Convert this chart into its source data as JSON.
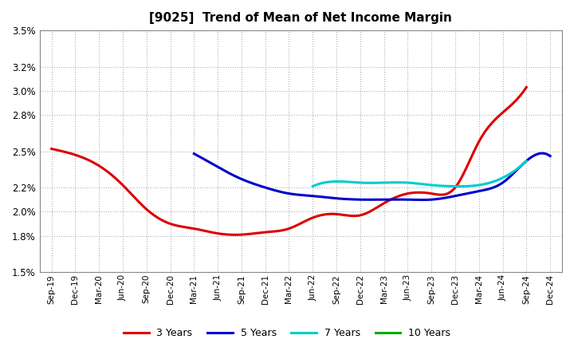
{
  "title": "[9025]  Trend of Mean of Net Income Margin",
  "background_color": "#ffffff",
  "plot_background": "#ffffff",
  "grid_color": "#b0b0b0",
  "xlabels": [
    "Sep-19",
    "Dec-19",
    "Mar-20",
    "Jun-20",
    "Sep-20",
    "Dec-20",
    "Mar-21",
    "Jun-21",
    "Sep-21",
    "Dec-21",
    "Mar-22",
    "Jun-22",
    "Sep-22",
    "Dec-22",
    "Mar-23",
    "Jun-23",
    "Sep-23",
    "Dec-23",
    "Mar-24",
    "Jun-24",
    "Sep-24",
    "Dec-24"
  ],
  "ylim": [
    0.015,
    0.035
  ],
  "yticks": [
    0.015,
    0.018,
    0.02,
    0.022,
    0.025,
    0.028,
    0.03,
    0.032,
    0.035
  ],
  "series": {
    "3 Years": {
      "color": "#dd0000",
      "linewidth": 2.2,
      "values": [
        0.0252,
        0.0247,
        0.0238,
        0.0222,
        0.0202,
        0.019,
        0.0186,
        0.0182,
        0.0181,
        0.0183,
        0.0186,
        0.0195,
        0.0198,
        0.0197,
        0.0207,
        0.0215,
        0.0215,
        0.022,
        0.0258,
        0.0282,
        0.0303,
        null
      ]
    },
    "5 Years": {
      "color": "#0000cc",
      "linewidth": 2.2,
      "values": [
        null,
        null,
        null,
        null,
        null,
        null,
        0.0248,
        0.0237,
        0.0227,
        0.022,
        0.0215,
        0.0213,
        0.0211,
        0.021,
        0.021,
        0.021,
        0.021,
        0.0213,
        0.0217,
        0.0224,
        0.0242,
        0.0246
      ]
    },
    "7 Years": {
      "color": "#00cccc",
      "linewidth": 2.2,
      "values": [
        null,
        null,
        null,
        null,
        null,
        null,
        null,
        null,
        null,
        null,
        null,
        0.0221,
        0.0225,
        0.0224,
        0.0224,
        0.0224,
        0.0222,
        0.0221,
        0.0222,
        0.0228,
        0.0242,
        null
      ]
    },
    "10 Years": {
      "color": "#00aa00",
      "linewidth": 2.2,
      "values": [
        null,
        null,
        null,
        null,
        null,
        null,
        null,
        null,
        null,
        null,
        null,
        null,
        null,
        null,
        null,
        null,
        null,
        null,
        null,
        null,
        null,
        null
      ]
    }
  },
  "legend": {
    "labels": [
      "3 Years",
      "5 Years",
      "7 Years",
      "10 Years"
    ],
    "colors": [
      "#dd0000",
      "#0000cc",
      "#00cccc",
      "#00aa00"
    ],
    "ncol": 4
  }
}
